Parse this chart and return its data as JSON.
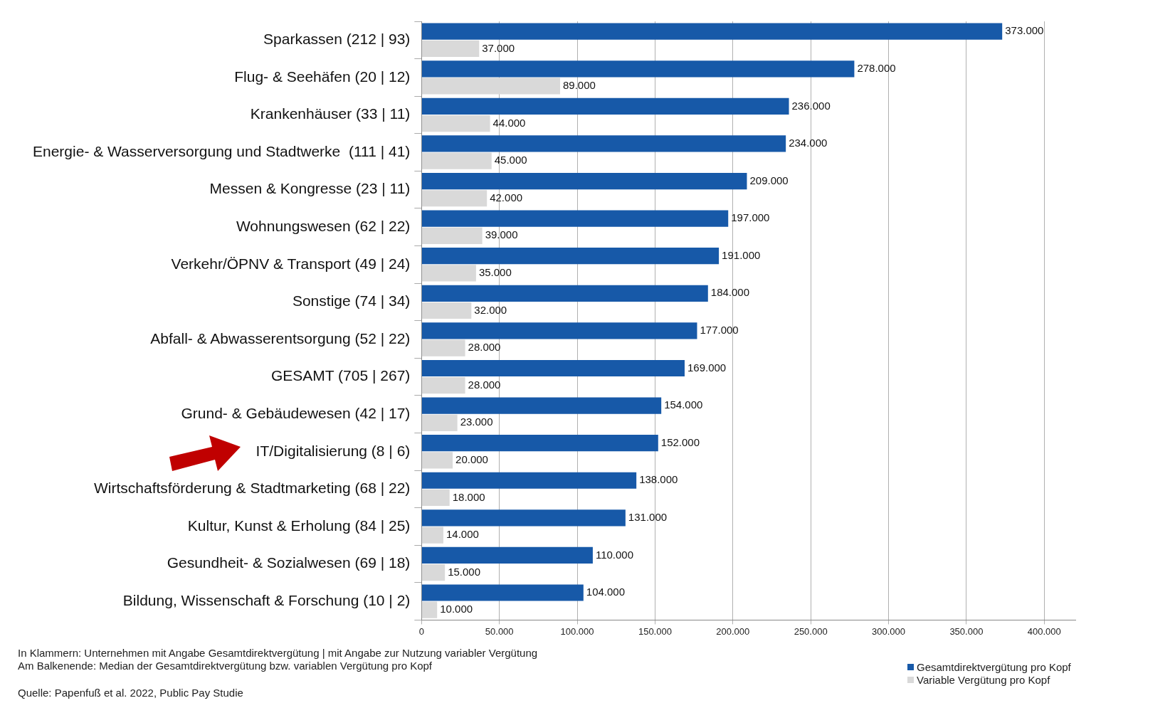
{
  "chart_data": {
    "type": "bar",
    "orientation": "horizontal",
    "categories": [
      "Sparkassen (212 | 93)",
      "Flug- & Seehäfen (20 | 12)",
      "Krankenhäuser (33 | 11)",
      "Energie- & Wasserversorgung und Stadtwerke  (111 | 41)",
      "Messen & Kongresse (23 | 11)",
      "Wohnungswesen (62 | 22)",
      "Verkehr/ÖPNV & Transport (49 | 24)",
      "Sonstige (74 | 34)",
      "Abfall- & Abwasserentsorgung (52 | 22)",
      "GESAMT (705 | 267)",
      "Grund- & Gebäudewesen (42 | 17)",
      "IT/Digitalisierung (8 | 6)",
      "Wirtschaftsförderung & Stadtmarketing (68 | 22)",
      "Kultur, Kunst & Erholung (84 | 25)",
      "Gesundheit- & Sozialwesen (69 | 18)",
      "Bildung, Wissenschaft & Forschung (10 | 2)"
    ],
    "series": [
      {
        "name": "Gesamtdirektvergütung pro Kopf",
        "color": "#1759a8",
        "values": [
          373000,
          278000,
          236000,
          234000,
          209000,
          197000,
          191000,
          184000,
          177000,
          169000,
          154000,
          152000,
          138000,
          131000,
          110000,
          104000
        ],
        "value_labels": [
          "373.000",
          "278.000",
          "236.000",
          "234.000",
          "209.000",
          "197.000",
          "191.000",
          "184.000",
          "177.000",
          "169.000",
          "154.000",
          "152.000",
          "138.000",
          "131.000",
          "110.000",
          "104.000"
        ]
      },
      {
        "name": "Variable Vergütung pro Kopf",
        "color": "#d9d9d9",
        "values": [
          37000,
          89000,
          44000,
          45000,
          42000,
          39000,
          35000,
          32000,
          28000,
          28000,
          23000,
          20000,
          18000,
          14000,
          15000,
          10000
        ],
        "value_labels": [
          "37.000",
          "89.000",
          "44.000",
          "45.000",
          "42.000",
          "39.000",
          "35.000",
          "32.000",
          "28.000",
          "28.000",
          "23.000",
          "20.000",
          "18.000",
          "14.000",
          "15.000",
          "10.000"
        ]
      }
    ],
    "xlim": [
      0,
      420000
    ],
    "xticks": [
      0,
      {
        "value": 50000,
        "label": "50.000"
      },
      {
        "value": 100000,
        "label": "100.000"
      },
      {
        "value": 150000,
        "label": "150.000"
      },
      {
        "value": 200000,
        "label": "200.000"
      },
      {
        "value": 250000,
        "label": "250.000"
      },
      {
        "value": 300000,
        "label": "300.000"
      },
      {
        "value": 350000,
        "label": "350.000"
      },
      {
        "value": 400000,
        "label": "400.000"
      }
    ],
    "grid": "x",
    "legend": "bottom right",
    "annotations": [
      "In Klammern: Unternehmen mit Angabe Gesamtdirektvergütung | mit Angabe zur Nutzung variabler Vergütung",
      "Am Balkenende: Median der Gesamtdirektvergütung bzw. variablen Vergütung pro Kopf",
      "Quelle: Papenfuß et al. 2022, Public Pay Studie"
    ]
  }
}
